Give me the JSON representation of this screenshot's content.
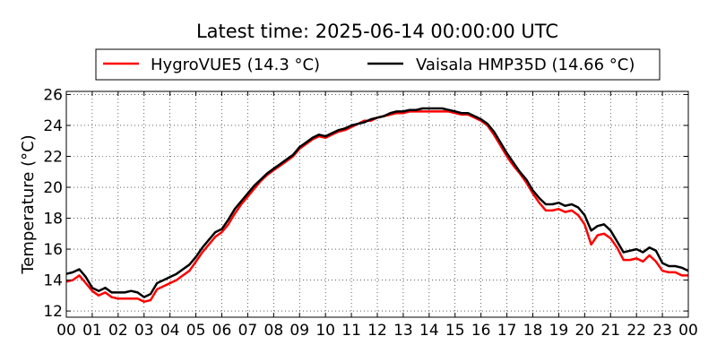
{
  "chart_data": {
    "type": "line",
    "title": "Latest time: 2025-06-14 00:00:00 UTC",
    "xlabel": "",
    "ylabel": "Temperature (°C)",
    "xlim": [
      0,
      24
    ],
    "ylim": [
      11.6,
      26.2
    ],
    "x_ticks": [
      0,
      1,
      2,
      3,
      4,
      5,
      6,
      7,
      8,
      9,
      10,
      11,
      12,
      13,
      14,
      15,
      16,
      17,
      18,
      19,
      20,
      21,
      22,
      23,
      24
    ],
    "x_tick_labels": [
      "00",
      "01",
      "02",
      "03",
      "04",
      "05",
      "06",
      "07",
      "08",
      "09",
      "10",
      "11",
      "12",
      "13",
      "14",
      "15",
      "16",
      "17",
      "18",
      "19",
      "20",
      "21",
      "22",
      "23",
      "00"
    ],
    "y_ticks": [
      12,
      14,
      16,
      18,
      20,
      22,
      24,
      26
    ],
    "y_tick_labels": [
      "12",
      "14",
      "16",
      "18",
      "20",
      "22",
      "24",
      "26"
    ],
    "grid": true,
    "legend_position": "top-center",
    "series": [
      {
        "name": "HygroVUE5 (14.3 °C)",
        "color": "#ff0000",
        "x": [
          0,
          0.25,
          0.5,
          0.75,
          1,
          1.25,
          1.5,
          1.75,
          2,
          2.25,
          2.5,
          2.75,
          3,
          3.25,
          3.5,
          3.75,
          4,
          4.25,
          4.5,
          4.75,
          5,
          5.25,
          5.5,
          5.75,
          6,
          6.25,
          6.5,
          6.75,
          7,
          7.25,
          7.5,
          7.75,
          8,
          8.25,
          8.5,
          8.75,
          9,
          9.25,
          9.5,
          9.75,
          10,
          10.25,
          10.5,
          10.75,
          11,
          11.25,
          11.5,
          11.75,
          12,
          12.25,
          12.5,
          12.75,
          13,
          13.25,
          13.5,
          13.75,
          14,
          14.25,
          14.5,
          14.75,
          15,
          15.25,
          15.5,
          15.75,
          16,
          16.25,
          16.5,
          16.75,
          17,
          17.25,
          17.5,
          17.75,
          18,
          18.25,
          18.5,
          18.75,
          19,
          19.25,
          19.5,
          19.75,
          20,
          20.25,
          20.5,
          20.75,
          21,
          21.25,
          21.5,
          21.75,
          22,
          22.25,
          22.5,
          22.75,
          23,
          23.25,
          23.5,
          23.75,
          24
        ],
        "values": [
          13.9,
          14.0,
          14.3,
          13.8,
          13.3,
          13.0,
          13.2,
          12.9,
          12.8,
          12.8,
          12.8,
          12.8,
          12.6,
          12.7,
          13.4,
          13.6,
          13.8,
          14.0,
          14.3,
          14.6,
          15.2,
          15.8,
          16.3,
          16.8,
          17.1,
          17.6,
          18.3,
          18.9,
          19.4,
          19.9,
          20.4,
          20.8,
          21.1,
          21.4,
          21.7,
          22.0,
          22.5,
          22.8,
          23.1,
          23.3,
          23.2,
          23.4,
          23.6,
          23.7,
          23.9,
          24.1,
          24.3,
          24.3,
          24.5,
          24.6,
          24.7,
          24.8,
          24.8,
          24.9,
          24.9,
          24.9,
          24.9,
          24.9,
          24.9,
          24.9,
          24.8,
          24.7,
          24.7,
          24.5,
          24.3,
          24.0,
          23.4,
          22.7,
          22.0,
          21.4,
          20.9,
          20.3,
          19.6,
          19.0,
          18.5,
          18.5,
          18.6,
          18.4,
          18.5,
          18.2,
          17.6,
          16.3,
          16.9,
          17.0,
          16.7,
          16.1,
          15.3,
          15.3,
          15.4,
          15.2,
          15.6,
          15.2,
          14.6,
          14.5,
          14.5,
          14.3,
          14.3
        ]
      },
      {
        "name": "Vaisala HMP35D (14.66 °C)",
        "color": "#000000",
        "x": [
          0,
          0.25,
          0.5,
          0.75,
          1,
          1.25,
          1.5,
          1.75,
          2,
          2.25,
          2.5,
          2.75,
          3,
          3.25,
          3.5,
          3.75,
          4,
          4.25,
          4.5,
          4.75,
          5,
          5.25,
          5.5,
          5.75,
          6,
          6.25,
          6.5,
          6.75,
          7,
          7.25,
          7.5,
          7.75,
          8,
          8.25,
          8.5,
          8.75,
          9,
          9.25,
          9.5,
          9.75,
          10,
          10.25,
          10.5,
          10.75,
          11,
          11.25,
          11.5,
          11.75,
          12,
          12.25,
          12.5,
          12.75,
          13,
          13.25,
          13.5,
          13.75,
          14,
          14.25,
          14.5,
          14.75,
          15,
          15.25,
          15.5,
          15.75,
          16,
          16.25,
          16.5,
          16.75,
          17,
          17.25,
          17.5,
          17.75,
          18,
          18.25,
          18.5,
          18.75,
          19,
          19.25,
          19.5,
          19.75,
          20,
          20.25,
          20.5,
          20.75,
          21,
          21.25,
          21.5,
          21.75,
          22,
          22.25,
          22.5,
          22.75,
          23,
          23.25,
          23.5,
          23.75,
          24
        ],
        "values": [
          14.4,
          14.5,
          14.7,
          14.2,
          13.5,
          13.3,
          13.5,
          13.2,
          13.2,
          13.2,
          13.3,
          13.2,
          12.9,
          13.1,
          13.8,
          14.0,
          14.2,
          14.4,
          14.7,
          15.0,
          15.5,
          16.1,
          16.6,
          17.1,
          17.3,
          17.9,
          18.6,
          19.1,
          19.6,
          20.1,
          20.5,
          20.9,
          21.2,
          21.5,
          21.8,
          22.1,
          22.6,
          22.9,
          23.2,
          23.4,
          23.3,
          23.5,
          23.7,
          23.8,
          24.0,
          24.1,
          24.2,
          24.4,
          24.5,
          24.6,
          24.8,
          24.9,
          24.9,
          25.0,
          25.0,
          25.1,
          25.1,
          25.1,
          25.1,
          25.0,
          24.9,
          24.8,
          24.8,
          24.6,
          24.4,
          24.1,
          23.6,
          22.9,
          22.2,
          21.6,
          21.0,
          20.5,
          19.8,
          19.3,
          18.9,
          18.9,
          19.0,
          18.8,
          18.9,
          18.7,
          18.2,
          17.2,
          17.5,
          17.6,
          17.2,
          16.5,
          15.8,
          15.9,
          16.0,
          15.8,
          16.1,
          15.9,
          15.1,
          14.9,
          14.9,
          14.8,
          14.6
        ]
      }
    ]
  }
}
